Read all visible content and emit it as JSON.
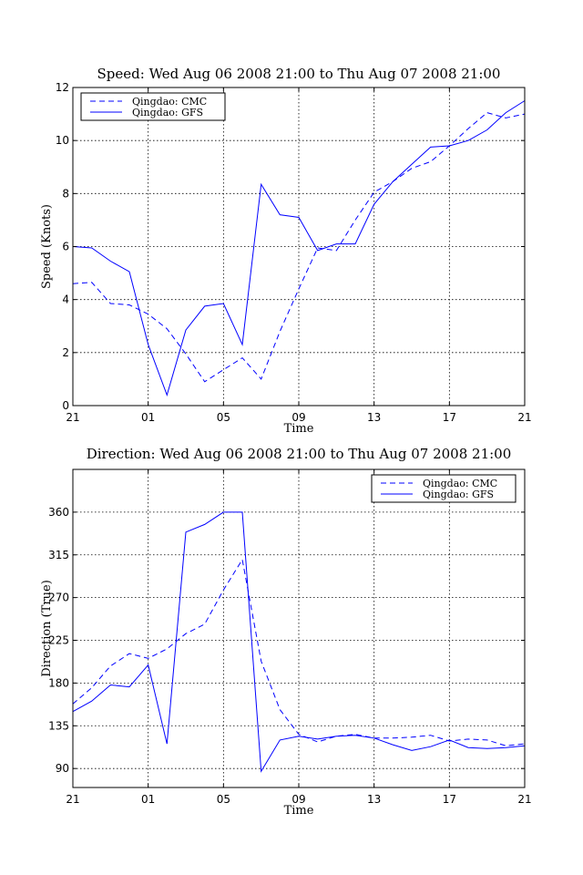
{
  "chart_data": [
    {
      "type": "line",
      "title": "Speed: Wed Aug 06 2008 21:00 to Thu Aug 07 2008 21:00",
      "xlabel": "Time",
      "ylabel": "Speed (Knots)",
      "xlim": [
        0,
        24
      ],
      "ylim": [
        0,
        12
      ],
      "xticks": [
        0,
        4,
        8,
        12,
        16,
        20,
        24
      ],
      "xticklabels": [
        "21",
        "01",
        "05",
        "09",
        "13",
        "17",
        "21"
      ],
      "yticks": [
        0,
        2,
        4,
        6,
        8,
        10,
        12
      ],
      "yticklabels": [
        "0",
        "2",
        "4",
        "6",
        "8",
        "10",
        "12"
      ],
      "grid": true,
      "legend_position": "top-left",
      "series": [
        {
          "name": "Qingdao: CMC",
          "style": "dashed",
          "color": "#0000ff",
          "x": [
            0,
            1,
            2,
            3,
            4,
            5,
            6,
            7,
            8,
            9,
            10,
            11,
            12,
            13,
            14,
            15,
            16,
            17,
            18,
            19,
            20,
            21,
            22,
            23,
            24
          ],
          "y": [
            4.6,
            4.65,
            3.85,
            3.8,
            3.45,
            2.9,
            1.95,
            0.9,
            1.35,
            1.8,
            1.0,
            2.8,
            4.4,
            5.95,
            5.85,
            7.0,
            8.05,
            8.45,
            8.95,
            9.2,
            9.8,
            10.45,
            11.05,
            10.85,
            11.0
          ],
          "values": [
            4.6,
            4.65,
            3.85,
            3.8,
            3.45,
            2.9,
            1.95,
            0.9,
            1.35,
            1.8,
            1.0,
            2.8,
            4.4,
            5.95,
            5.85,
            7.0,
            8.05,
            8.45,
            8.95,
            9.2,
            9.8,
            10.45,
            11.05,
            10.85,
            11.0
          ]
        },
        {
          "name": "Qingdao: GFS",
          "style": "solid",
          "color": "#0000ff",
          "x": [
            0,
            1,
            2,
            3,
            4,
            5,
            6,
            7,
            8,
            9,
            10,
            11,
            12,
            13,
            14,
            15,
            16,
            17,
            18,
            19,
            20,
            21,
            22,
            23,
            24
          ],
          "y": [
            6.0,
            5.95,
            5.45,
            5.05,
            2.3,
            0.4,
            2.85,
            3.75,
            3.85,
            2.3,
            8.35,
            7.2,
            7.1,
            5.85,
            6.1,
            6.1,
            7.6,
            8.45,
            9.1,
            9.75,
            9.8,
            10.0,
            10.4,
            11.05,
            11.5
          ],
          "values": [
            6.0,
            5.95,
            5.45,
            5.05,
            2.3,
            0.4,
            2.85,
            3.75,
            3.85,
            2.3,
            8.35,
            7.2,
            7.1,
            5.85,
            6.1,
            6.1,
            7.6,
            8.45,
            9.1,
            9.75,
            9.8,
            10.0,
            10.4,
            11.05,
            11.5
          ]
        }
      ]
    },
    {
      "type": "line",
      "title": "Direction: Wed Aug 06 2008 21:00 to Thu Aug 07 2008 21:00",
      "xlabel": "Time",
      "ylabel": "Direction (True)",
      "xlim": [
        0,
        24
      ],
      "ylim": [
        70,
        405
      ],
      "xticks": [
        0,
        4,
        8,
        12,
        16,
        20,
        24
      ],
      "xticklabels": [
        "21",
        "01",
        "05",
        "09",
        "13",
        "17",
        "21"
      ],
      "yticks": [
        90,
        135,
        180,
        225,
        270,
        315,
        360
      ],
      "yticklabels": [
        "90",
        "135",
        "180",
        "225",
        "270",
        "315",
        "360"
      ],
      "grid": true,
      "legend_position": "top-right",
      "series": [
        {
          "name": "Qingdao: CMC",
          "style": "dashed",
          "color": "#0000ff",
          "x": [
            0,
            1,
            2,
            3,
            4,
            5,
            6,
            7,
            8,
            9,
            10,
            11,
            12,
            13,
            14,
            15,
            16,
            17,
            18,
            19,
            20,
            21,
            22,
            23,
            24
          ],
          "y": [
            158,
            175,
            198,
            211,
            206,
            216,
            232,
            242,
            278,
            310,
            203,
            152,
            126,
            118,
            124,
            126,
            122,
            122,
            123,
            125,
            119,
            121,
            120,
            114,
            116
          ],
          "values": [
            158,
            175,
            198,
            211,
            206,
            216,
            232,
            242,
            278,
            310,
            203,
            152,
            126,
            118,
            124,
            126,
            122,
            122,
            123,
            125,
            119,
            121,
            120,
            114,
            116
          ]
        },
        {
          "name": "Qingdao: GFS",
          "style": "solid",
          "color": "#0000ff",
          "x": [
            0,
            1,
            2,
            3,
            4,
            5,
            6,
            7,
            8,
            9,
            10,
            11,
            12,
            13,
            14,
            15,
            16,
            17,
            18,
            19,
            20,
            21,
            22,
            23,
            24
          ],
          "y": [
            150,
            161,
            178,
            176,
            199,
            116,
            339,
            347,
            360,
            360,
            87,
            120,
            124,
            121,
            124,
            125,
            122,
            115,
            109,
            113,
            120,
            112,
            111,
            112,
            114
          ],
          "values": [
            150,
            161,
            178,
            176,
            199,
            116,
            339,
            347,
            360,
            360,
            87,
            120,
            124,
            121,
            124,
            125,
            122,
            115,
            109,
            113,
            120,
            112,
            111,
            112,
            114
          ]
        }
      ]
    }
  ]
}
